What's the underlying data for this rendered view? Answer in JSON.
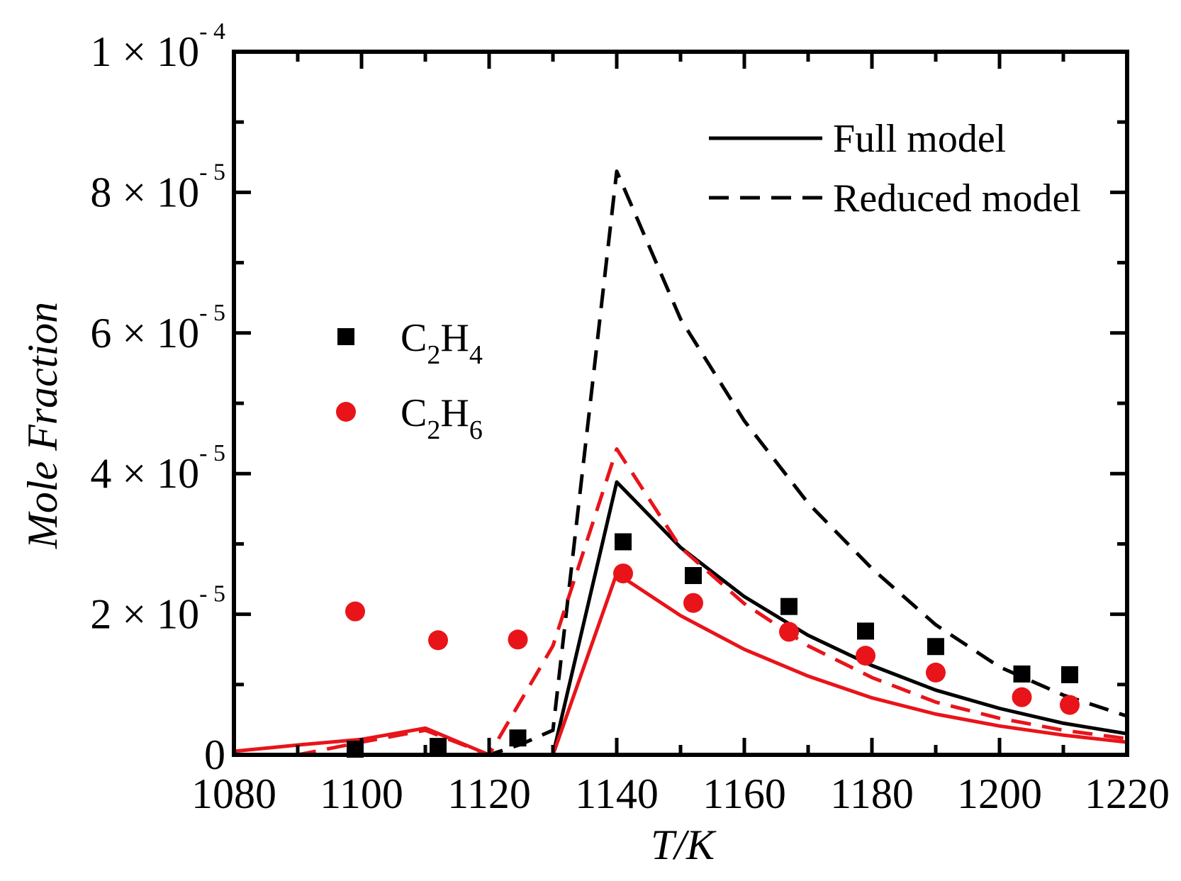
{
  "chart_data": {
    "type": "line",
    "xlabel": "T/K",
    "ylabel": "Mole Fraction",
    "xlim": [
      1080,
      1220
    ],
    "ylim": [
      0,
      0.0001
    ],
    "x_ticks": [
      1080,
      1100,
      1120,
      1140,
      1160,
      1180,
      1200,
      1220
    ],
    "x_tick_labels": [
      "1080",
      "1100",
      "1120",
      "1140",
      "1160",
      "1180",
      "1200",
      "1220"
    ],
    "y_ticks": [
      0,
      2e-05,
      4e-05,
      6e-05,
      8e-05,
      0.0001
    ],
    "y_tick_labels": [
      {
        "mantissa": "0",
        "times": "",
        "base": "",
        "exp": ""
      },
      {
        "mantissa": "2",
        "times": "×",
        "base": "10",
        "exp": "- 5"
      },
      {
        "mantissa": "4",
        "times": "×",
        "base": "10",
        "exp": "- 5"
      },
      {
        "mantissa": "6",
        "times": "×",
        "base": "10",
        "exp": "- 5"
      },
      {
        "mantissa": "8",
        "times": "×",
        "base": "10",
        "exp": "- 5"
      },
      {
        "mantissa": "1",
        "times": "×",
        "base": "10",
        "exp": "- 4"
      }
    ],
    "series": [
      {
        "name": "C2H4 Full model",
        "kind": "line",
        "style": "solid",
        "color": "#000000",
        "x": [
          1080,
          1100,
          1110,
          1120,
          1130,
          1140,
          1150,
          1160,
          1170,
          1180,
          1190,
          1200,
          1210,
          1220
        ],
        "y": [
          0,
          0,
          0,
          0,
          0,
          3.88e-05,
          2.95e-05,
          2.25e-05,
          1.7e-05,
          1.27e-05,
          9.2e-06,
          6.6e-06,
          4.5e-06,
          3e-06
        ]
      },
      {
        "name": "C2H4 Reduced model",
        "kind": "line",
        "style": "dashed",
        "color": "#000000",
        "x": [
          1080,
          1100,
          1110,
          1120,
          1125,
          1130,
          1140,
          1145,
          1150,
          1160,
          1170,
          1180,
          1190,
          1200,
          1210,
          1220
        ],
        "y": [
          0,
          0,
          0,
          0,
          1.5e-06,
          3.5e-06,
          8.3e-05,
          7.25e-05,
          6.2e-05,
          4.75e-05,
          3.58e-05,
          2.65e-05,
          1.85e-05,
          1.25e-05,
          8.5e-06,
          5.5e-06
        ]
      },
      {
        "name": "C2H6 Full model",
        "kind": "line",
        "style": "solid",
        "color": "#e8141a",
        "x": [
          1080,
          1090,
          1100,
          1110,
          1120,
          1130,
          1140,
          1150,
          1160,
          1170,
          1180,
          1190,
          1200,
          1210,
          1220
        ],
        "y": [
          5e-07,
          1.4e-06,
          2.2e-06,
          3.8e-06,
          0,
          0,
          2.58e-05,
          1.98e-05,
          1.5e-05,
          1.12e-05,
          8.1e-06,
          5.8e-06,
          4.1e-06,
          2.8e-06,
          1.8e-06
        ]
      },
      {
        "name": "C2H6 Reduced model",
        "kind": "line",
        "style": "dashed",
        "color": "#e8141a",
        "x": [
          1080,
          1090,
          1100,
          1110,
          1120,
          1130,
          1140,
          1150,
          1160,
          1170,
          1180,
          1190,
          1200,
          1210,
          1220
        ],
        "y": [
          0,
          0,
          1.8e-06,
          3.5e-06,
          0,
          1.55e-05,
          4.35e-05,
          2.95e-05,
          2.15e-05,
          1.55e-05,
          1.1e-05,
          7.5e-06,
          5.2e-06,
          3.5e-06,
          2.3e-06
        ]
      },
      {
        "name": "C2H4 experiment",
        "kind": "scatter",
        "marker": "square",
        "color": "#000000",
        "x": [
          1099,
          1112,
          1124.5,
          1141,
          1152,
          1167,
          1179,
          1190,
          1203.5,
          1211
        ],
        "y": [
          8e-07,
          1.2e-06,
          2.4e-06,
          3.03e-05,
          2.55e-05,
          2.11e-05,
          1.76e-05,
          1.54e-05,
          1.15e-05,
          1.14e-05
        ]
      },
      {
        "name": "C2H6 experiment",
        "kind": "scatter",
        "marker": "circle",
        "color": "#e8141a",
        "x": [
          1099,
          1112,
          1124.5,
          1141,
          1152,
          1167,
          1179,
          1190,
          1203.5,
          1211
        ],
        "y": [
          2.04e-05,
          1.63e-05,
          1.64e-05,
          2.58e-05,
          2.16e-05,
          1.75e-05,
          1.41e-05,
          1.17e-05,
          8.2e-06,
          7.1e-06
        ]
      }
    ],
    "legend_lines": [
      {
        "label": "Full model",
        "style": "solid",
        "color": "#000000"
      },
      {
        "label": "Reduced model",
        "style": "dashed",
        "color": "#000000"
      }
    ],
    "legend_species": [
      {
        "symbol": "C",
        "sub1": "2",
        "mid": "H",
        "sub2": "4",
        "marker": "square",
        "color": "#000000"
      },
      {
        "symbol": "C",
        "sub1": "2",
        "mid": "H",
        "sub2": "6",
        "marker": "circle",
        "color": "#e8141a"
      }
    ]
  }
}
